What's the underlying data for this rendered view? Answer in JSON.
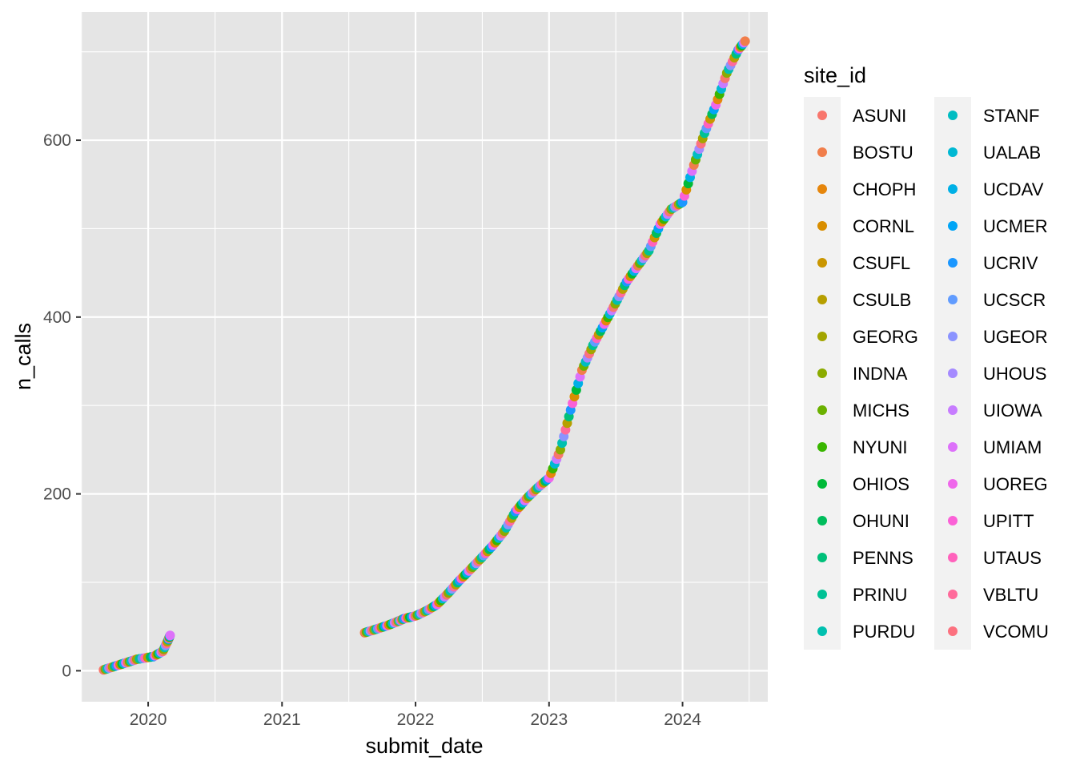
{
  "chart_data": {
    "type": "scatter",
    "title": "",
    "xlabel": "submit_date",
    "ylabel": "n_calls",
    "x_type": "date",
    "xlim": [
      "2019-07-01",
      "2024-08-21"
    ],
    "ylim": [
      -35,
      745
    ],
    "x_ticks": [
      {
        "value": "2020-01-01",
        "label": "2020"
      },
      {
        "value": "2021-01-01",
        "label": "2021"
      },
      {
        "value": "2022-01-01",
        "label": "2022"
      },
      {
        "value": "2023-01-01",
        "label": "2023"
      },
      {
        "value": "2024-01-01",
        "label": "2024"
      }
    ],
    "y_ticks": [
      0,
      200,
      400,
      600
    ],
    "grid": true,
    "panel_background": "#E5E5E5",
    "grid_color": "#FFFFFF",
    "legend": {
      "title": "site_id",
      "position": "right",
      "columns": 2,
      "entries": [
        {
          "label": "ASUNI",
          "color": "#F8766D"
        },
        {
          "label": "BOSTU",
          "color": "#F17E4B"
        },
        {
          "label": "CHOPH",
          "color": "#E6860C"
        },
        {
          "label": "CORNL",
          "color": "#D98E00"
        },
        {
          "label": "CSUFL",
          "color": "#CA9600"
        },
        {
          "label": "CSULB",
          "color": "#B79F00"
        },
        {
          "label": "GEORG",
          "color": "#A3A500"
        },
        {
          "label": "INDNA",
          "color": "#8BAB00"
        },
        {
          "label": "MICHS",
          "color": "#6BB100"
        },
        {
          "label": "NYUNI",
          "color": "#39B600"
        },
        {
          "label": "OHIOS",
          "color": "#00BA38"
        },
        {
          "label": "OHUNI",
          "color": "#00BD5C"
        },
        {
          "label": "PENNS",
          "color": "#00C07A"
        },
        {
          "label": "PRINU",
          "color": "#00C195"
        },
        {
          "label": "PURDU",
          "color": "#00C0AF"
        },
        {
          "label": "STANF",
          "color": "#00BDC2"
        },
        {
          "label": "UALAB",
          "color": "#00B8D3"
        },
        {
          "label": "UCDAV",
          "color": "#00B0E6"
        },
        {
          "label": "UCMER",
          "color": "#00A5F6"
        },
        {
          "label": "UCRIV",
          "color": "#1B97FF"
        },
        {
          "label": "UCSCR",
          "color": "#619CFF"
        },
        {
          "label": "UGEOR",
          "color": "#8B93FF"
        },
        {
          "label": "UHOUS",
          "color": "#A58AFF"
        },
        {
          "label": "UIOWA",
          "color": "#C77CFF"
        },
        {
          "label": "UMIAM",
          "color": "#DD71FA"
        },
        {
          "label": "UOREG",
          "color": "#EF67EB"
        },
        {
          "label": "UPITT",
          "color": "#FB61D7"
        },
        {
          "label": "UTAUS",
          "color": "#FF62BC"
        },
        {
          "label": "VBLTU",
          "color": "#FF6A9B"
        },
        {
          "label": "VCOMU",
          "color": "#FC717F"
        }
      ]
    },
    "series_points_note_free": true,
    "points": {
      "x": [
        "2019-09-01",
        "2019-10-01",
        "2019-11-01",
        "2019-12-01",
        "2020-01-15",
        "2020-02-10",
        "2020-02-25",
        "2020-03-01",
        "2021-08-15",
        "2021-09-15",
        "2021-10-15",
        "2021-11-15",
        "2021-12-01",
        "2022-01-01",
        "2022-02-01",
        "2022-03-01",
        "2022-04-01",
        "2022-05-01",
        "2022-06-01",
        "2022-07-01",
        "2022-08-01",
        "2022-09-01",
        "2022-10-01",
        "2022-11-01",
        "2022-12-01",
        "2023-01-01",
        "2023-02-01",
        "2023-03-01",
        "2023-04-01",
        "2023-05-01",
        "2023-06-01",
        "2023-07-01",
        "2023-08-01",
        "2023-09-01",
        "2023-10-01",
        "2023-11-01",
        "2023-12-01",
        "2024-01-01",
        "2024-02-01",
        "2024-03-01",
        "2024-04-01",
        "2024-05-01",
        "2024-06-01",
        "2024-06-20"
      ],
      "y": [
        1,
        5,
        9,
        13,
        16,
        22,
        35,
        40,
        43,
        47,
        51,
        56,
        59,
        62,
        68,
        75,
        88,
        102,
        115,
        128,
        142,
        158,
        180,
        195,
        207,
        218,
        250,
        295,
        340,
        368,
        392,
        415,
        440,
        458,
        475,
        505,
        522,
        530,
        572,
        608,
        640,
        676,
        702,
        712
      ]
    }
  }
}
